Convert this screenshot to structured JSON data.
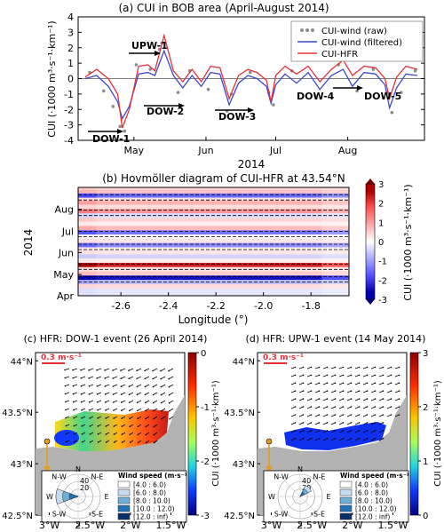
{
  "chart_data": [
    {
      "id": "a",
      "type": "line",
      "title": "(a) CUI in BOB area (April-August 2014)",
      "xlabel": "2014",
      "ylabel": "CUI (·1000 m³·s⁻¹·km⁻¹)",
      "ylim": [
        -4,
        4
      ],
      "yticks": [
        "-4",
        "-3",
        "-2",
        "-1",
        "0",
        "1",
        "2",
        "3",
        "4"
      ],
      "xticks": [
        "May",
        "Jun",
        "Jul",
        "Aug"
      ],
      "legend": [
        "CUI-wind (raw)",
        "CUI-wind (filtered)",
        "CUI-HFR"
      ],
      "legend_position": "top-right",
      "series": [
        {
          "name": "CUI-wind (filtered)",
          "x": [
            "2014-04-10",
            "2014-04-15",
            "2014-04-20",
            "2014-04-24",
            "2014-04-26",
            "2014-04-29",
            "2014-05-03",
            "2014-05-07",
            "2014-05-10",
            "2014-05-14",
            "2014-05-18",
            "2014-05-22",
            "2014-05-26",
            "2014-05-30",
            "2014-06-03",
            "2014-06-07",
            "2014-06-11",
            "2014-06-15",
            "2014-06-19",
            "2014-06-23",
            "2014-06-27",
            "2014-06-29",
            "2014-07-01",
            "2014-07-05",
            "2014-07-10",
            "2014-07-15",
            "2014-07-20",
            "2014-07-25",
            "2014-07-30",
            "2014-08-03",
            "2014-08-08",
            "2014-08-13",
            "2014-08-17",
            "2014-08-19",
            "2014-08-22",
            "2014-08-26",
            "2014-08-31"
          ],
          "values": [
            0.0,
            0.2,
            -0.5,
            -1.5,
            -2.6,
            -1.8,
            0.3,
            0.4,
            0.2,
            1.8,
            0.2,
            -0.6,
            0.2,
            -0.5,
            0.4,
            0.3,
            -1.7,
            -0.3,
            0.2,
            0.0,
            -0.5,
            -1.6,
            -0.4,
            0.3,
            -0.3,
            0.4,
            -0.7,
            0.2,
            0.6,
            -0.5,
            0.4,
            0.3,
            -0.4,
            -1.9,
            -0.6,
            0.3,
            0.2
          ]
        },
        {
          "name": "CUI-HFR",
          "x": [
            "2014-04-10",
            "2014-04-15",
            "2014-04-20",
            "2014-04-24",
            "2014-04-26",
            "2014-04-29",
            "2014-05-03",
            "2014-05-07",
            "2014-05-10",
            "2014-05-14",
            "2014-05-18",
            "2014-05-22",
            "2014-05-26",
            "2014-05-30",
            "2014-06-03",
            "2014-06-07",
            "2014-06-11",
            "2014-06-15",
            "2014-06-19",
            "2014-06-23",
            "2014-06-27",
            "2014-06-29",
            "2014-07-01",
            "2014-07-05",
            "2014-07-10",
            "2014-07-15",
            "2014-07-20",
            "2014-07-25",
            "2014-07-30",
            "2014-08-03",
            "2014-08-08",
            "2014-08-13",
            "2014-08-17",
            "2014-08-19",
            "2014-08-22",
            "2014-08-26",
            "2014-08-31"
          ],
          "values": [
            0.1,
            0.6,
            0.0,
            -1.0,
            -3.2,
            -2.0,
            0.8,
            0.9,
            0.5,
            2.8,
            0.5,
            -0.2,
            0.6,
            -0.2,
            0.8,
            0.7,
            -1.3,
            0.2,
            0.6,
            0.4,
            -0.1,
            -1.5,
            0.2,
            0.8,
            0.3,
            0.8,
            -0.2,
            0.6,
            1.2,
            0.2,
            0.8,
            0.7,
            0.0,
            -1.3,
            0.1,
            0.8,
            0.6
          ]
        },
        {
          "name": "CUI-wind (raw)",
          "x": [
            "2014-04-12",
            "2014-04-18",
            "2014-04-22",
            "2014-04-25",
            "2014-04-27",
            "2014-05-02",
            "2014-05-08",
            "2014-05-12",
            "2014-05-13",
            "2014-05-20",
            "2014-05-25",
            "2014-06-02",
            "2014-06-10",
            "2014-06-12",
            "2014-06-20",
            "2014-06-28",
            "2014-06-30",
            "2014-07-08",
            "2014-07-18",
            "2014-07-28",
            "2014-08-05",
            "2014-08-12",
            "2014-08-18",
            "2014-08-20",
            "2014-08-24",
            "2014-08-30"
          ],
          "values": [
            0.4,
            -0.8,
            -1.8,
            -3.1,
            -3.4,
            0.9,
            0.6,
            1.9,
            2.3,
            -0.9,
            0.5,
            -0.7,
            -2.1,
            -1.0,
            0.4,
            -0.9,
            -1.7,
            0.5,
            -1.1,
            0.9,
            -0.8,
            0.6,
            -0.9,
            -2.2,
            -0.9,
            0.5
          ]
        }
      ],
      "annotations": [
        "UPW-1",
        "DOW-1",
        "DOW-2",
        "DOW-3",
        "DOW-4",
        "DOW-5"
      ]
    },
    {
      "id": "b",
      "type": "heatmap",
      "title": "(b) Hovmöller diagram of CUI-HFR at 43.54°N",
      "xlabel": "Longitude (°)",
      "ylabel": "2014",
      "xticks": [
        "-2.6",
        "-2.4",
        "-2.2",
        "-2.0",
        "-1.8"
      ],
      "yticks": [
        "Apr",
        "May",
        "Jun",
        "Jul",
        "Aug"
      ],
      "colorbar_label": "CUI (·1000 m³·s⁻¹·km⁻¹)",
      "colorbar_ticks": [
        "-3",
        "-2",
        "-1",
        "0",
        "1",
        "2",
        "3"
      ],
      "rows": [
        {
          "date": "2014-04-08",
          "value": -0.3
        },
        {
          "date": "2014-04-14",
          "value": 0.4
        },
        {
          "date": "2014-04-20",
          "value": -0.8
        },
        {
          "date": "2014-04-26",
          "value": -2.8
        },
        {
          "date": "2014-05-02",
          "value": 0.6
        },
        {
          "date": "2014-05-08",
          "value": 0.3
        },
        {
          "date": "2014-05-14",
          "value": 2.6
        },
        {
          "date": "2014-05-20",
          "value": 0.2
        },
        {
          "date": "2014-05-26",
          "value": -0.5
        },
        {
          "date": "2014-06-01",
          "value": 0.3
        },
        {
          "date": "2014-06-07",
          "value": 0.2
        },
        {
          "date": "2014-06-11",
          "value": -1.4
        },
        {
          "date": "2014-06-17",
          "value": 0.3
        },
        {
          "date": "2014-06-23",
          "value": 0.1
        },
        {
          "date": "2014-06-29",
          "value": -1.6
        },
        {
          "date": "2014-07-05",
          "value": 0.8
        },
        {
          "date": "2014-07-11",
          "value": 0.2
        },
        {
          "date": "2014-07-17",
          "value": 0.5
        },
        {
          "date": "2014-07-23",
          "value": -0.4
        },
        {
          "date": "2014-07-29",
          "value": 1.2
        },
        {
          "date": "2014-08-04",
          "value": 0.4
        },
        {
          "date": "2014-08-10",
          "value": 0.9
        },
        {
          "date": "2014-08-16",
          "value": 0.3
        },
        {
          "date": "2014-08-20",
          "value": -1.7
        },
        {
          "date": "2014-08-26",
          "value": 0.7
        },
        {
          "date": "2014-08-31",
          "value": 0.5
        }
      ]
    },
    {
      "id": "c",
      "type": "heatmap",
      "title": "(c) HFR: DOW-1 event (26 April 2014)",
      "xticks": [
        "3°W",
        "2.5°W",
        "2°W",
        "1.5°W"
      ],
      "yticks": [
        "44°N",
        "43.5°N",
        "43°N",
        "42.5°N"
      ],
      "scale_label": "0.3 m·s⁻¹",
      "colorbar_label": "CUI (·1000 m³·s⁻¹·km⁻¹)",
      "colorbar_ticks": [
        "0",
        "-1",
        "-2",
        "-3"
      ],
      "rose_directions": [
        "N",
        "N-E",
        "E",
        "S-E",
        "S",
        "S-W",
        "W",
        "N-W"
      ],
      "rose_rings": [
        "20",
        "40"
      ],
      "rose_legend_title": "Wind speed (m·s⁻¹)",
      "rose_legend": [
        "[4.0 : 6.0)",
        "[6.0 : 8.0)",
        "[8.0 : 10.0)",
        "[10.0 : 12.0)",
        "[12.0 : inf)"
      ],
      "rose_values": [
        {
          "direction": "W",
          "percent": 45
        }
      ]
    },
    {
      "id": "d",
      "type": "heatmap",
      "title": "(d) HFR: UPW-1 event (14 May 2014)",
      "xticks": [
        "3°W",
        "2.5°W",
        "2°W",
        "1.5°W"
      ],
      "yticks": [
        "44°N",
        "43.5°N",
        "43°N",
        "42.5°N"
      ],
      "scale_label": "0.3 m·s⁻¹",
      "colorbar_label": "CUI (·1000 m³·s⁻¹·km⁻¹)",
      "colorbar_ticks": [
        "0",
        "1",
        "2",
        "3"
      ],
      "rose_directions": [
        "N",
        "N-E",
        "E",
        "S-E",
        "S",
        "S-W",
        "W",
        "N-W"
      ],
      "rose_rings": [
        "20",
        "40"
      ],
      "rose_legend_title": "Wind speed (m·s⁻¹)",
      "rose_legend": [
        "[4.0 : 6.0)",
        "[6.0 : 8.0)",
        "[8.0 : 10.0)",
        "[10.0 : 12.0)",
        "[12.0 : inf)"
      ],
      "rose_values": [
        {
          "direction": "N-E",
          "percent": 25
        }
      ]
    }
  ],
  "colors": {
    "raw": "#8c8c8c",
    "filtered": "#3f47c9",
    "hfr": "#e8303a",
    "land": "#b3b3b3",
    "rose": [
      "#ffffff",
      "#c6dbef",
      "#6baed6",
      "#2171b5",
      "#08306b"
    ]
  }
}
